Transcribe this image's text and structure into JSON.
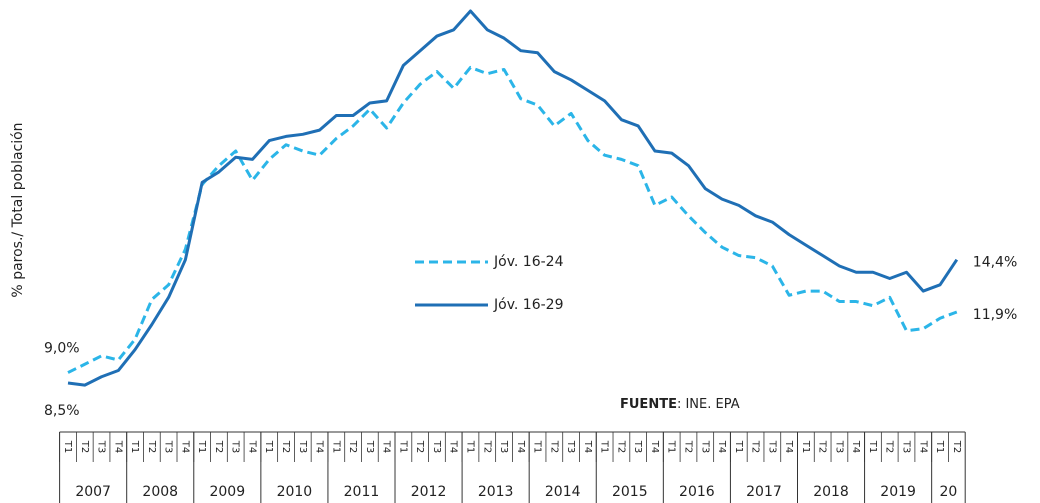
{
  "chart_data": {
    "type": "line",
    "y_label": "% paros./ Total población",
    "source": {
      "label": "FUENTE",
      "text": ": INE. EPA"
    },
    "categories": [
      "T1",
      "T2",
      "T3",
      "T4",
      "T1",
      "T2",
      "T3",
      "T4",
      "T1",
      "T2",
      "T3",
      "T4",
      "T1",
      "T2",
      "T3",
      "T4",
      "T1",
      "T2",
      "T3",
      "T4",
      "T1",
      "T2",
      "T3",
      "T4",
      "T1",
      "T2",
      "T3",
      "T4",
      "T1",
      "T2",
      "T3",
      "T4",
      "T1",
      "T2",
      "T3",
      "T4",
      "T1",
      "T2",
      "T3",
      "T4",
      "T1",
      "T2",
      "T3",
      "T4",
      "T1",
      "T2",
      "T3",
      "T4",
      "T1",
      "T2",
      "T3",
      "T4",
      "T1",
      "T2"
    ],
    "years": [
      "2007",
      "2008",
      "2009",
      "2010",
      "2011",
      "2012",
      "2013",
      "2014",
      "2015",
      "2016",
      "2017",
      "2018",
      "2019",
      "20"
    ],
    "ylim": [
      6,
      26.5
    ],
    "series": [
      {
        "name": "Jóv. 16-24",
        "color": "#2bb5e8",
        "dash": true,
        "start_label": "9,0%",
        "end_label": "11,9%",
        "values": [
          9.0,
          9.4,
          9.8,
          9.6,
          10.6,
          12.5,
          13.2,
          14.9,
          18.0,
          18.9,
          19.6,
          18.2,
          19.2,
          19.9,
          19.6,
          19.4,
          20.2,
          20.8,
          21.6,
          20.7,
          21.9,
          22.8,
          23.4,
          22.6,
          23.6,
          23.3,
          23.5,
          22.1,
          21.8,
          20.8,
          21.4,
          20.1,
          19.4,
          19.2,
          18.9,
          17.0,
          17.4,
          16.5,
          15.7,
          15.0,
          14.6,
          14.5,
          14.1,
          12.7,
          12.9,
          12.9,
          12.4,
          12.4,
          12.2,
          12.6,
          11.0,
          11.1,
          11.6,
          11.9
        ]
      },
      {
        "name": "Jóv. 16-29",
        "color": "#1f6fb5",
        "dash": false,
        "start_label": "8,5%",
        "end_label": "14,4%",
        "values": [
          8.5,
          8.4,
          8.8,
          9.1,
          10.1,
          11.3,
          12.6,
          14.4,
          18.1,
          18.6,
          19.3,
          19.2,
          20.1,
          20.3,
          20.4,
          20.6,
          21.3,
          21.3,
          21.9,
          22.0,
          23.7,
          24.4,
          25.1,
          25.4,
          26.3,
          25.4,
          25.0,
          24.4,
          24.3,
          23.4,
          23.0,
          22.5,
          22.0,
          21.1,
          20.8,
          19.6,
          19.5,
          18.9,
          17.8,
          17.3,
          17.0,
          16.5,
          16.2,
          15.6,
          15.1,
          14.6,
          14.1,
          13.8,
          13.8,
          13.5,
          13.8,
          12.9,
          13.2,
          14.4
        ]
      }
    ]
  }
}
